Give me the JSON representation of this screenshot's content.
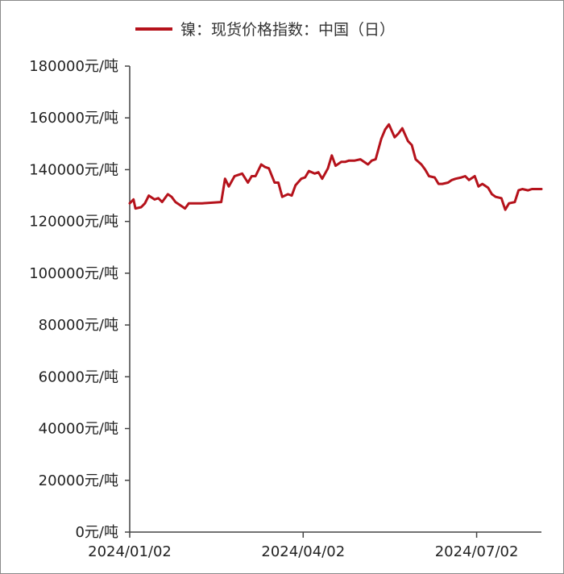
{
  "chart_data": {
    "type": "line",
    "y_unit": "元/吨",
    "ylim": [
      0,
      180000
    ],
    "y_ticks": [
      0,
      20000,
      40000,
      60000,
      80000,
      100000,
      120000,
      140000,
      160000,
      180000
    ],
    "y_tick_labels": [
      "0元/吨",
      "20000元/吨",
      "40000元/吨",
      "60000元/吨",
      "80000元/吨",
      "100000元/吨",
      "120000元/吨",
      "140000元/吨",
      "160000元/吨",
      "180000元/吨"
    ],
    "x_tick_labels": [
      "2024/01/02",
      "2024/04/02",
      "2024/07/02"
    ],
    "x_ticks": [
      "2024-01-02",
      "2024-04-02",
      "2024-07-02"
    ],
    "xlim": [
      "2024-01-02",
      "2024-08-05"
    ],
    "grid": false,
    "legend_position": "top",
    "series": [
      {
        "name": "镍：现货价格指数：中国（日）",
        "color": "#b5121b",
        "x": [
          "2024-01-02",
          "2024-01-04",
          "2024-01-05",
          "2024-01-08",
          "2024-01-10",
          "2024-01-12",
          "2024-01-15",
          "2024-01-17",
          "2024-01-19",
          "2024-01-22",
          "2024-01-24",
          "2024-01-26",
          "2024-01-29",
          "2024-01-31",
          "2024-02-02",
          "2024-02-05",
          "2024-02-07",
          "2024-02-09",
          "2024-02-19",
          "2024-02-21",
          "2024-02-23",
          "2024-02-26",
          "2024-02-28",
          "2024-03-01",
          "2024-03-04",
          "2024-03-06",
          "2024-03-08",
          "2024-03-11",
          "2024-03-13",
          "2024-03-15",
          "2024-03-18",
          "2024-03-20",
          "2024-03-22",
          "2024-03-25",
          "2024-03-27",
          "2024-03-29",
          "2024-04-01",
          "2024-04-03",
          "2024-04-05",
          "2024-04-08",
          "2024-04-10",
          "2024-04-12",
          "2024-04-15",
          "2024-04-17",
          "2024-04-19",
          "2024-04-22",
          "2024-04-24",
          "2024-04-26",
          "2024-04-29",
          "2024-05-02",
          "2024-05-06",
          "2024-05-08",
          "2024-05-10",
          "2024-05-13",
          "2024-05-15",
          "2024-05-17",
          "2024-05-20",
          "2024-05-22",
          "2024-05-24",
          "2024-05-27",
          "2024-05-29",
          "2024-05-31",
          "2024-06-03",
          "2024-06-05",
          "2024-06-07",
          "2024-06-10",
          "2024-06-12",
          "2024-06-14",
          "2024-06-17",
          "2024-06-19",
          "2024-06-21",
          "2024-06-24",
          "2024-06-26",
          "2024-06-28",
          "2024-07-01",
          "2024-07-03",
          "2024-07-05",
          "2024-07-08",
          "2024-07-10",
          "2024-07-12",
          "2024-07-15",
          "2024-07-17",
          "2024-07-19",
          "2024-07-22",
          "2024-07-24",
          "2024-07-26",
          "2024-07-29",
          "2024-07-31",
          "2024-08-02",
          "2024-08-05"
        ],
        "y": [
          127000,
          128500,
          125000,
          125500,
          127000,
          130000,
          128500,
          129000,
          127500,
          130500,
          129500,
          127500,
          126000,
          125000,
          127000,
          127000,
          127000,
          127000,
          127500,
          136500,
          133500,
          137500,
          138000,
          138500,
          135000,
          137500,
          137500,
          142000,
          141000,
          140500,
          135000,
          135000,
          129500,
          130500,
          130000,
          134000,
          136500,
          137000,
          139500,
          138500,
          139000,
          136500,
          140500,
          145500,
          141500,
          143000,
          143000,
          143500,
          143500,
          144000,
          142000,
          143500,
          144000,
          152000,
          155500,
          157500,
          152500,
          154000,
          156000,
          151000,
          149500,
          144000,
          142000,
          140000,
          137500,
          137000,
          134500,
          134500,
          135000,
          136000,
          136500,
          137000,
          137500,
          136000,
          137500,
          133500,
          134500,
          133000,
          130500,
          129500,
          129000,
          124500,
          127000,
          127500,
          132000,
          132500,
          132000,
          132500,
          132500,
          132500
        ]
      }
    ]
  }
}
